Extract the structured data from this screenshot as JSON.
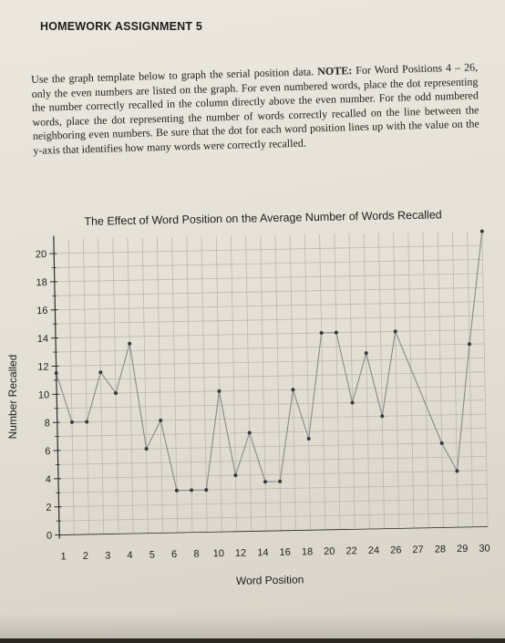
{
  "document": {
    "heading": "HOMEWORK ASSIGNMENT 5",
    "instructions_lead": "Use the graph template below to graph the serial position data.",
    "instructions_note_label": "NOTE:",
    "instructions_body": "For Word Positions 4 – 26, only the even numbers are listed on the graph. For even numbered words, place the dot representing the number correctly recalled in the column directly above the even number. For the odd numbered words, place the dot representing the number of words correctly recalled on the line between the neighboring even numbers. Be sure that the dot for each word position lines up with the value on the y-axis that identifies how many words were correctly recalled."
  },
  "chart_data": {
    "type": "line",
    "title": "The Effect of Word Position on the Average Number of Words Recalled",
    "xlabel": "Word Position",
    "ylabel": "Number Recalled",
    "x_tick_labels": [
      "1",
      "2",
      "3",
      "4",
      "5",
      "6",
      "8",
      "10",
      "12",
      "14",
      "16",
      "18",
      "20",
      "22",
      "24",
      "26",
      "27",
      "28",
      "29",
      "30"
    ],
    "y_ticks": [
      0,
      2,
      4,
      6,
      8,
      10,
      12,
      14,
      16,
      18,
      20
    ],
    "ylim": [
      0,
      21
    ],
    "grid": true,
    "points": [
      {
        "x": 1,
        "y": 11.5
      },
      {
        "x": 2,
        "y": 8
      },
      {
        "x": 3,
        "y": 8
      },
      {
        "x": 4,
        "y": 11.5
      },
      {
        "x": 5,
        "y": 10
      },
      {
        "x": 6,
        "y": 13.5
      },
      {
        "x": 7,
        "y": 6
      },
      {
        "x": 8,
        "y": 8
      },
      {
        "x": 9,
        "y": 3
      },
      {
        "x": 10,
        "y": 3
      },
      {
        "x": 11,
        "y": 3
      },
      {
        "x": 12,
        "y": 10
      },
      {
        "x": 13,
        "y": 4
      },
      {
        "x": 14,
        "y": 7
      },
      {
        "x": 15,
        "y": 3.5
      },
      {
        "x": 16,
        "y": 3.5
      },
      {
        "x": 17,
        "y": 10
      },
      {
        "x": 18,
        "y": 6.5
      },
      {
        "x": 19,
        "y": 14
      },
      {
        "x": 20,
        "y": 14
      },
      {
        "x": 21,
        "y": 9
      },
      {
        "x": 22,
        "y": 12.5
      },
      {
        "x": 23,
        "y": 8
      },
      {
        "x": 24,
        "y": 14
      },
      {
        "x": 27,
        "y": 6
      },
      {
        "x": 28,
        "y": 4
      },
      {
        "x": 29,
        "y": 13
      },
      {
        "x": 30,
        "y": 21
      }
    ],
    "colors": {
      "line": "#8a8a8a",
      "point": "#3a3a3a",
      "grid": "#bdb8ae",
      "axis": "#2c2c2c"
    }
  }
}
